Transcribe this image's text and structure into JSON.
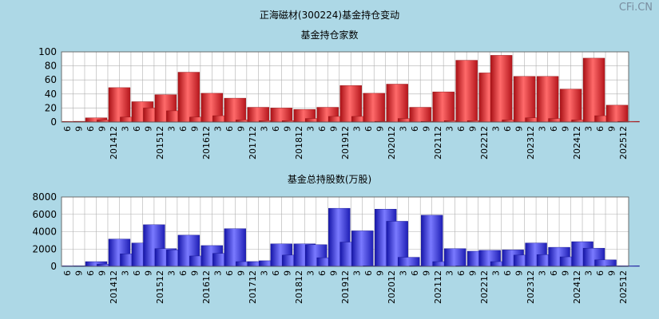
{
  "title": "正海磁材(300224)基金持仓变动",
  "watermark": "CFi.CN",
  "chart_data": [
    {
      "type": "bar",
      "title": "基金持仓家数",
      "ylim": [
        0,
        100
      ],
      "yticks": [
        0,
        20,
        40,
        60,
        80,
        100
      ],
      "grid": true,
      "bar_color": "#e8232a",
      "categories": [
        "6",
        "9",
        "6",
        "9",
        "201412",
        "3",
        "6",
        "9",
        "201512",
        "3",
        "6",
        "9",
        "201612",
        "3",
        "6",
        "9",
        "201712",
        "3",
        "6",
        "9",
        "201812",
        "3",
        "6",
        "9",
        "201912",
        "3",
        "6",
        "9",
        "202012",
        "3",
        "6",
        "9",
        "202112",
        "3",
        "6",
        "9",
        "202212",
        "3",
        "6",
        "9",
        "202312",
        "3",
        "6",
        "9",
        "202412",
        "3",
        "6",
        "9",
        "202512"
      ],
      "values": [
        1,
        1,
        6,
        3,
        49,
        7,
        29,
        20,
        39,
        16,
        71,
        7,
        41,
        9,
        34,
        3,
        21,
        2,
        20,
        2,
        18,
        5,
        21,
        8,
        52,
        8,
        41,
        1,
        54,
        5,
        21,
        1,
        43,
        2,
        88,
        2,
        70,
        95,
        3,
        65,
        6,
        65,
        5,
        47,
        3,
        91,
        9,
        24,
        1
      ]
    },
    {
      "type": "bar",
      "title": "基金总持股数(万股)",
      "ylim": [
        0,
        8000
      ],
      "yticks": [
        0,
        2000,
        4000,
        6000,
        8000
      ],
      "grid": true,
      "bar_color": "#3333ee",
      "categories": [
        "6",
        "9",
        "6",
        "9",
        "201412",
        "3",
        "6",
        "9",
        "201512",
        "3",
        "6",
        "9",
        "201612",
        "3",
        "6",
        "9",
        "201712",
        "3",
        "6",
        "9",
        "201812",
        "3",
        "6",
        "9",
        "201912",
        "3",
        "6",
        "9",
        "202012",
        "3",
        "6",
        "9",
        "202112",
        "3",
        "6",
        "9",
        "202212",
        "3",
        "6",
        "9",
        "202312",
        "3",
        "6",
        "9",
        "202412",
        "3",
        "6",
        "9",
        "202512"
      ],
      "values": [
        50,
        50,
        550,
        250,
        3150,
        1450,
        2700,
        4800,
        2050,
        1900,
        3600,
        1200,
        2400,
        1500,
        4350,
        550,
        550,
        650,
        2600,
        1300,
        2600,
        2500,
        1000,
        6700,
        2800,
        4100,
        50,
        6600,
        5200,
        1050,
        50,
        5900,
        550,
        2050,
        50,
        1750,
        1850,
        550,
        1900,
        1300,
        2700,
        1350,
        2200,
        1100,
        2850,
        2100,
        750,
        50,
        50
      ]
    }
  ]
}
